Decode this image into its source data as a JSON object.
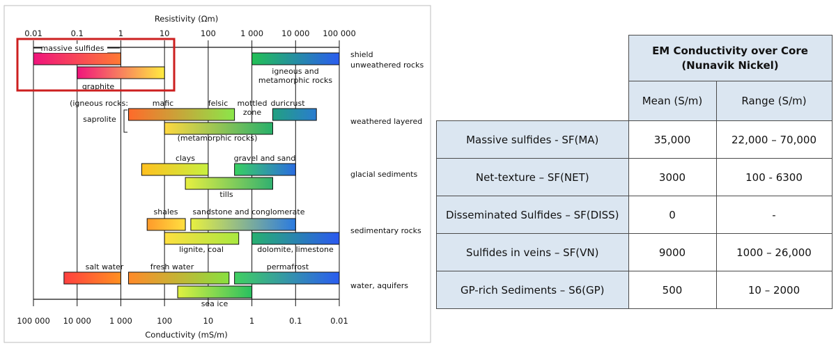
{
  "chart_data": {
    "type": "range-bar",
    "top_axis": {
      "label": "Resistivity (Ωm)",
      "tick_labels": [
        "0.01",
        "0.1",
        "1",
        "10",
        "100",
        "1 000",
        "10 000",
        "100 000"
      ],
      "scale": "log",
      "range": [
        0.01,
        100000
      ]
    },
    "bottom_axis": {
      "label": "Conductivity (mS/m)",
      "tick_labels": [
        "100 000",
        "10 000",
        "1 000",
        "100",
        "10",
        "1",
        "0.1",
        "0.01"
      ],
      "scale": "log",
      "range": [
        100000,
        0.01
      ]
    },
    "categories": [
      "shield\nunweathered rocks",
      "weathered layered",
      "glacial sediments",
      "sedimentary rocks",
      "water, aquifers"
    ],
    "bars": [
      {
        "label": "massive sulfides",
        "resistivity": [
          0.01,
          1
        ],
        "color_from": "#f0147c",
        "color_to": "#ff7a33",
        "group": 0
      },
      {
        "label": "graphite",
        "resistivity": [
          0.1,
          10
        ],
        "color_from": "#f0147c",
        "color_to": "#ffec40",
        "group": 0
      },
      {
        "label": "igneous and\nmetamorphic rocks",
        "resistivity": [
          1000,
          100000
        ],
        "color_from": "#22c055",
        "color_to": "#2a5cf0",
        "group": 0
      },
      {
        "label": "mafic",
        "resistivity": [
          1.5,
          400
        ],
        "color_from": "#ff6a2a",
        "color_to": "#8be64a",
        "group": 1
      },
      {
        "label": "felsic",
        "resistivity": [],
        "group": 1
      },
      {
        "label": "(metamorphic rocks)",
        "resistivity": [
          10,
          3000
        ],
        "color_from": "#ffd840",
        "color_to": "#28b06a",
        "group": 1
      },
      {
        "label": "duricrust",
        "resistivity": [
          3000,
          30000
        ],
        "color_from": "#22a080",
        "color_to": "#2a7cd0",
        "group": 1
      },
      {
        "label": "clays",
        "resistivity": [
          3,
          100
        ],
        "color_from": "#ffc020",
        "color_to": "#c8f040",
        "group": 2
      },
      {
        "label": "gravel and sand",
        "resistivity": [
          400,
          10000
        ],
        "color_from": "#38d060",
        "color_to": "#2a6ce0",
        "group": 2
      },
      {
        "label": "tills",
        "resistivity": [
          30,
          3000
        ],
        "color_from": "#e8f040",
        "color_to": "#30b070",
        "group": 2
      },
      {
        "label": "shales",
        "resistivity": [
          4,
          30
        ],
        "color_from": "#ff9a2a",
        "color_to": "#ffe040",
        "group": 3
      },
      {
        "label": "sandstone and conglomerate",
        "resistivity": [
          40,
          10000
        ],
        "color_from": "#e8f040",
        "color_to": "#2a7ae0",
        "group": 3
      },
      {
        "label": "lignite, coal",
        "resistivity": [
          10,
          500
        ],
        "color_from": "#ffe040",
        "color_to": "#a8e840",
        "group": 3
      },
      {
        "label": "dolomite, limestone",
        "resistivity": [
          1000,
          100000
        ],
        "color_from": "#28b070",
        "color_to": "#2a58f0",
        "group": 3
      },
      {
        "label": "salt water",
        "resistivity": [
          0.05,
          1
        ],
        "color_from": "#ff4040",
        "color_to": "#ff9020",
        "group": 4
      },
      {
        "label": "fresh water",
        "resistivity": [
          1.5,
          300
        ],
        "color_from": "#ff8a2a",
        "color_to": "#88e040",
        "group": 4
      },
      {
        "label": "permafrost",
        "resistivity": [
          400,
          100000
        ],
        "color_from": "#40d060",
        "color_to": "#2a5cf0",
        "group": 4
      },
      {
        "label": "sea ice",
        "resistivity": [
          20,
          1000
        ],
        "color_from": "#e0f040",
        "color_to": "#28c060",
        "group": 4
      }
    ],
    "annotations": [
      "(igneous rocks:",
      "saprolite",
      "mottled\nzone"
    ]
  },
  "em_table": {
    "title": "EM Conductivity over Core\n(Nunavik Nickel)",
    "columns": [
      "Mean (S/m)",
      "Range (S/m)"
    ],
    "rows": [
      {
        "label": "Massive sulfides  - SF(MA)",
        "mean": "35,000",
        "range": "22,000 – 70,000"
      },
      {
        "label": "Net-texture – SF(NET)",
        "mean": "3000",
        "range": "100 - 6300"
      },
      {
        "label": "Disseminated Sulfides – SF(DISS)",
        "mean": "0",
        "range": "-"
      },
      {
        "label": "Sulfides in veins – SF(VN)",
        "mean": "9000",
        "range": "1000 – 26,000"
      },
      {
        "label": "GP-rich Sediments – S6(GP)",
        "mean": "500",
        "range": "10 – 2000"
      }
    ]
  },
  "colors": {
    "highlight_box": "#cc1f1f",
    "table_header": "#dbe6f1",
    "axis": "#111111"
  }
}
